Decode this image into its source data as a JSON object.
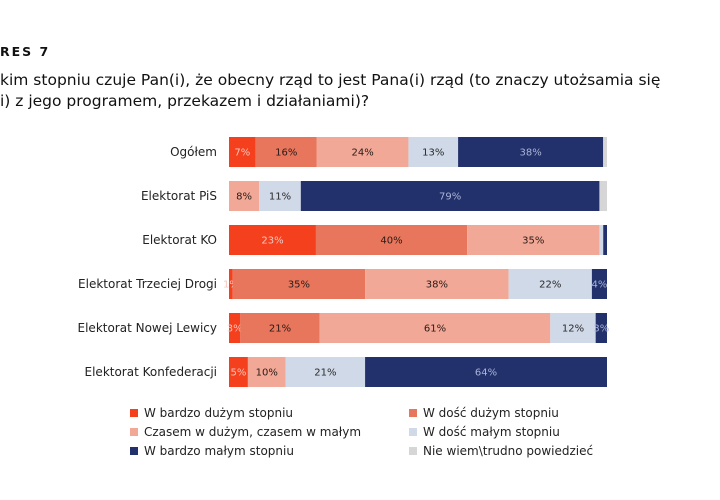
{
  "figure": {
    "label": "RES 7",
    "question_lines": [
      "kim stopniu czuje Pan(i), że obecny rząd to jest Pana(i) rząd (to znaczy utożsamia się",
      "i) z jego programem, przekazem i działaniami)?"
    ]
  },
  "chart_data": {
    "type": "bar",
    "orientation": "horizontal",
    "stacked": true,
    "normalized": "percent",
    "categories": [
      "Ogółem",
      "Elektorat PiS",
      "Elektorat KO",
      "Elektorat Trzeciej Drogi",
      "Elektorat Nowej Lewicy",
      "Elektorat Konfederacji"
    ],
    "series": [
      {
        "name": "W bardzo dużym stopniu",
        "color": "#f4401d",
        "label_color": "#f7c7bd",
        "values": [
          7,
          0,
          23,
          1,
          3,
          5
        ],
        "labels": [
          "7%",
          "",
          "23%",
          "1%",
          "3%",
          "5%"
        ]
      },
      {
        "name": "W dość dużym stopniu",
        "color": "#e8765c",
        "label_color": "#2a1a16",
        "values": [
          16,
          0,
          40,
          35,
          21,
          0
        ],
        "labels": [
          "16%",
          "",
          "40%",
          "35%",
          "21%",
          ""
        ]
      },
      {
        "name": "Czasem w dużym, czasem w małym",
        "color": "#f2a897",
        "label_color": "#2a1a16",
        "values": [
          24,
          8,
          35,
          38,
          61,
          10
        ],
        "labels": [
          "24%",
          "8%",
          "35%",
          "38%",
          "61%",
          "10%"
        ]
      },
      {
        "name": "W dość małym stopniu",
        "color": "#d0d9e8",
        "label_color": "#2a2a2a",
        "values": [
          13,
          11,
          1,
          22,
          12,
          21
        ],
        "labels": [
          "13%",
          "11%",
          "",
          "22%",
          "12%",
          "21%"
        ]
      },
      {
        "name": "W bardzo małym stopniu",
        "color": "#22306b",
        "label_color": "#aab4d8",
        "values": [
          38,
          79,
          1,
          4,
          3,
          64
        ],
        "labels": [
          "38%",
          "79%",
          "",
          "4%",
          "3%",
          "64%"
        ]
      },
      {
        "name": "Nie wiem\\trudno powiedzieć",
        "color": "#d6d6d6",
        "label_color": "#2a2a2a",
        "values": [
          1,
          2,
          0,
          0,
          0,
          0
        ],
        "labels": [
          "",
          "",
          "",
          "",
          "",
          ""
        ]
      }
    ],
    "xlim": [
      0,
      100
    ],
    "grid": false,
    "legend": "bottom"
  }
}
